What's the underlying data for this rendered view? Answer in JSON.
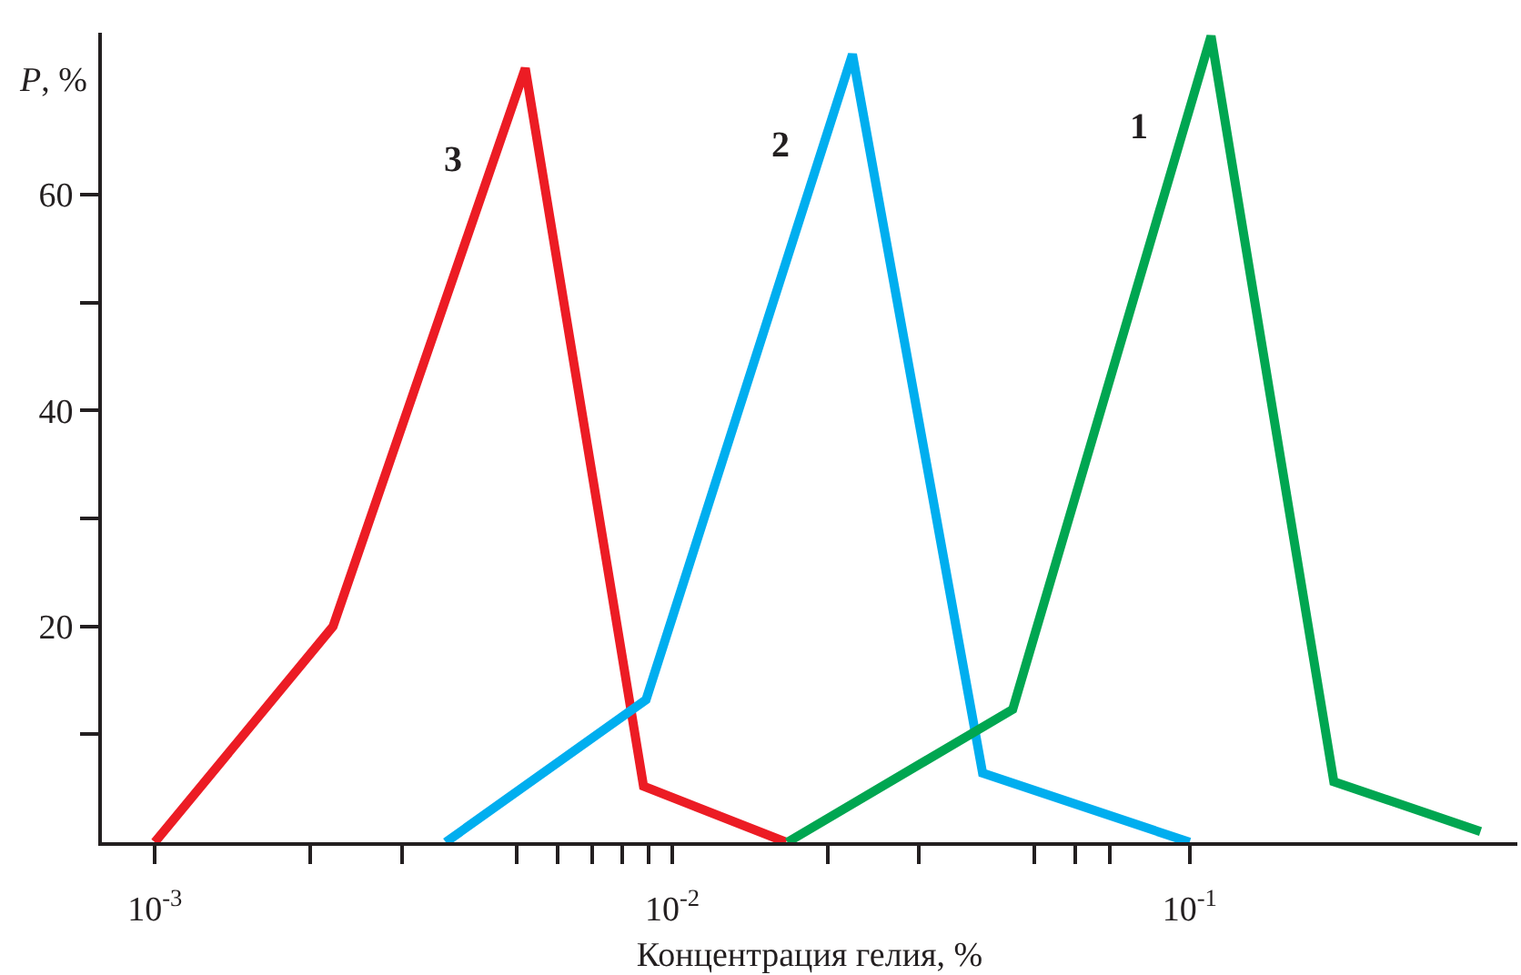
{
  "chart_data": {
    "type": "line",
    "xlabel": "Концентрация гелия, %",
    "ylabel": "P, %",
    "log": "x",
    "grid": false,
    "legend": false,
    "marker": "none",
    "line_style": "solid",
    "xlim": [
      0.00079,
      0.43
    ],
    "ylim": [
      0,
      75
    ],
    "xticks": [
      {
        "value": 0.001,
        "label": "10$^{-3}$"
      },
      {
        "value": 0.002,
        "label": null
      },
      {
        "value": 0.003,
        "label": null
      },
      {
        "value": 0.005,
        "label": null
      },
      {
        "value": 0.006,
        "label": null
      },
      {
        "value": 0.007,
        "label": null
      },
      {
        "value": 0.008,
        "label": null
      },
      {
        "value": 0.009,
        "label": null
      },
      {
        "value": 0.01,
        "label": "10$^{-2}$"
      },
      {
        "value": 0.02,
        "label": null
      },
      {
        "value": 0.03,
        "label": null
      },
      {
        "value": 0.05,
        "label": null
      },
      {
        "value": 0.06,
        "label": null
      },
      {
        "value": 0.07,
        "label": null
      },
      {
        "value": 0.1,
        "label": "10$^{-1}$"
      }
    ],
    "yticks": [
      {
        "value": 10,
        "label": null
      },
      20,
      {
        "value": 30,
        "label": null
      },
      40,
      {
        "value": 50,
        "label": null
      },
      60
    ],
    "series": [
      {
        "name": "3",
        "color": "#ec1c24",
        "x": [
          0.001,
          0.00221,
          0.0052,
          0.0088,
          0.0166
        ],
        "values": [
          0,
          20,
          71.7,
          5.2,
          0
        ]
      },
      {
        "name": "2",
        "color": "#00aeef",
        "x": [
          0.00365,
          0.0089,
          0.0223,
          0.0398,
          0.1
        ],
        "values": [
          0,
          13.2,
          73,
          6.4,
          0
        ]
      },
      {
        "name": "1",
        "color": "#00a651",
        "x": [
          0.0167,
          0.0455,
          0.11,
          0.19,
          0.365
        ],
        "values": [
          0,
          12.3,
          74.7,
          5.6,
          1
        ]
      }
    ]
  }
}
